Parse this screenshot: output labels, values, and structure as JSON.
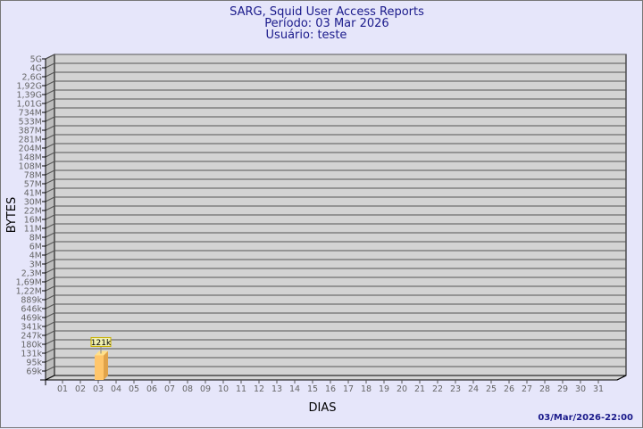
{
  "chart_data": {
    "type": "bar",
    "title": "SARG, Squid User Access Reports",
    "subtitle_period": "Período: 03 Mar 2026",
    "subtitle_user": "Usuário: teste",
    "xlabel": "DIAS",
    "ylabel": "BYTES",
    "footer": "03/Mar/2026-22:00",
    "y_tick_labels": [
      "69k",
      "95k",
      "131k",
      "180k",
      "247k",
      "341k",
      "469k",
      "646k",
      "889k",
      "1,22M",
      "1,69M",
      "2,3M",
      "3M",
      "4M",
      "6M",
      "8M",
      "11M",
      "16M",
      "22M",
      "30M",
      "41M",
      "57M",
      "78M",
      "108M",
      "148M",
      "204M",
      "281M",
      "387M",
      "533M",
      "734M",
      "1,01G",
      "1,39G",
      "1,92G",
      "2,6G",
      "4G",
      "5G"
    ],
    "categories": [
      "01",
      "02",
      "03",
      "04",
      "05",
      "06",
      "07",
      "08",
      "09",
      "10",
      "11",
      "12",
      "13",
      "14",
      "15",
      "16",
      "17",
      "18",
      "19",
      "20",
      "21",
      "22",
      "23",
      "24",
      "25",
      "26",
      "27",
      "28",
      "29",
      "30",
      "31"
    ],
    "bars": [
      {
        "category": "03",
        "value": 121000,
        "label": "121k"
      }
    ],
    "grid": true,
    "colors": {
      "background": "#e6e6fa",
      "plot": "#d3d3d3",
      "bar": "#ffc66b",
      "bar_side": "#e0a34a",
      "label_box": "#f0f0b0",
      "text": "#00008b",
      "tick_text": "#666666"
    }
  }
}
